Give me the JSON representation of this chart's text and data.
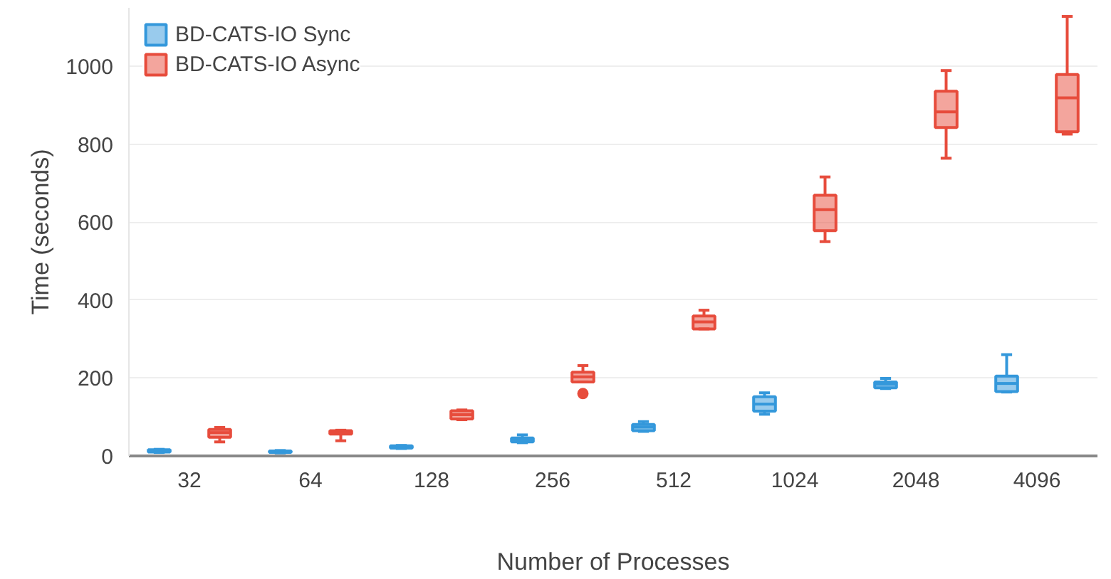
{
  "chart_data": {
    "type": "box",
    "xlabel": "Number of Processes",
    "ylabel": "Time (seconds)",
    "categories": [
      "32",
      "64",
      "128",
      "256",
      "512",
      "1024",
      "2048",
      "4096"
    ],
    "ylim": [
      0,
      1150
    ],
    "yticks": [
      0,
      200,
      400,
      600,
      800,
      1000
    ],
    "grid": "y",
    "legend": "top left",
    "series": [
      {
        "name": "BD-CATS-IO Sync",
        "color": "#3498db",
        "boxes": [
          {
            "low": 9,
            "q1": 10,
            "median": 13,
            "q3": 16,
            "high": 17
          },
          {
            "low": 8,
            "q1": 9,
            "median": 11,
            "q3": 13,
            "high": 14
          },
          {
            "low": 19,
            "q1": 20,
            "median": 23,
            "q3": 26,
            "high": 27
          },
          {
            "low": 34,
            "q1": 36,
            "median": 42,
            "q3": 46,
            "high": 54
          },
          {
            "low": 63,
            "q1": 65,
            "median": 74,
            "q3": 81,
            "high": 88
          },
          {
            "low": 107,
            "q1": 115,
            "median": 133,
            "q3": 152,
            "high": 162
          },
          {
            "low": 173,
            "q1": 175,
            "median": 184,
            "q3": 190,
            "high": 199
          },
          {
            "low": 164,
            "q1": 165,
            "median": 186,
            "q3": 205,
            "high": 260
          }
        ]
      },
      {
        "name": "BD-CATS-IO Async",
        "color": "#e74c3c",
        "boxes": [
          {
            "low": 36,
            "q1": 48,
            "median": 60,
            "q3": 68,
            "high": 73
          },
          {
            "low": 39,
            "q1": 56,
            "median": 60,
            "q3": 65,
            "high": 66
          },
          {
            "low": 93,
            "q1": 95,
            "median": 106,
            "q3": 116,
            "high": 118
          },
          {
            "low": 190,
            "q1": 190,
            "median": 203,
            "q3": 215,
            "high": 232,
            "outliers": [
              160
            ]
          },
          {
            "low": 326,
            "q1": 326,
            "median": 344,
            "q3": 359,
            "high": 374
          },
          {
            "low": 550,
            "q1": 578,
            "median": 632,
            "q3": 669,
            "high": 716
          },
          {
            "low": 764,
            "q1": 843,
            "median": 883,
            "q3": 936,
            "high": 989
          },
          {
            "low": 826,
            "q1": 832,
            "median": 919,
            "q3": 979,
            "high": 1128
          }
        ]
      }
    ]
  }
}
